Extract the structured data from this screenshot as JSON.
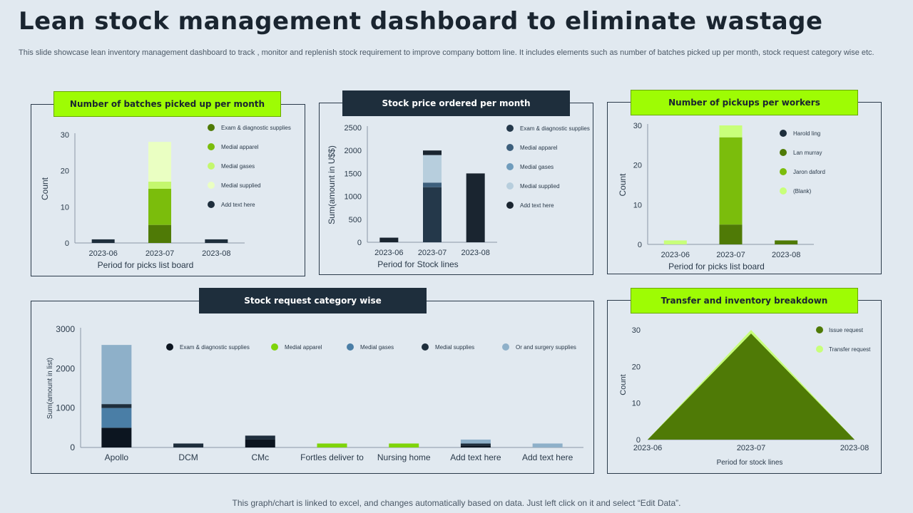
{
  "page": {
    "title": "Lean stock management dashboard to eliminate wastage",
    "subtitle": "This slide showcase lean inventory management dashboard to track , monitor and replenish stock requirement to improve company bottom line. It includes elements such as number of batches picked up per month, stock request category wise etc.",
    "footer": "This graph/chart is linked to excel, and changes automatically based on data. Just left click on it and select “Edit Data”."
  },
  "panels": {
    "batches": {
      "title": "Number of batches picked up per month"
    },
    "price": {
      "title": "Stock price ordered  per month"
    },
    "pickups": {
      "title": "Number of pickups per workers"
    },
    "requests": {
      "title": "Stock request category wise"
    },
    "transfer": {
      "title": "Transfer and inventory breakdown"
    }
  },
  "colors": {
    "background": "#e1e9f0",
    "accent_green": "#9efc04",
    "dark_navy": "#1e2e3c"
  },
  "chart_data": [
    {
      "id": "batches",
      "type": "bar",
      "stacked": true,
      "categories": [
        "2023-06",
        "2023-07",
        "2023-08"
      ],
      "xlabel": "Period for picks list board",
      "ylabel": "Count",
      "ylim": [
        0,
        30
      ],
      "yticks": [
        0,
        10,
        20,
        30
      ],
      "legend_position": "right",
      "series": [
        {
          "name": "Exam & diagnostic  supplies",
          "color": "#4f7a06",
          "values": [
            0,
            5,
            0
          ]
        },
        {
          "name": "Medial apparel",
          "color": "#7bbd0c",
          "values": [
            0,
            10,
            0
          ]
        },
        {
          "name": "Medial gases",
          "color": "#c4f76e",
          "values": [
            0,
            2,
            0
          ]
        },
        {
          "name": "Medial supplied",
          "color": "#eaffc2",
          "values": [
            0,
            11,
            0
          ]
        },
        {
          "name": "Add text here",
          "color": "#1e2e3c",
          "values": [
            1,
            0,
            1
          ]
        }
      ]
    },
    {
      "id": "price",
      "type": "bar",
      "stacked": true,
      "categories": [
        "2023-06",
        "2023-07",
        "2023-08"
      ],
      "xlabel": "Period for Stock lines",
      "ylabel": "Sum(amount in U$$)",
      "ylim": [
        0,
        2500
      ],
      "yticks": [
        0,
        500,
        1000,
        1500,
        2000,
        2500
      ],
      "legend_position": "right",
      "series": [
        {
          "name": "Exam & diagnostic  supplies",
          "color": "#24384a",
          "values": [
            0,
            1200,
            0
          ]
        },
        {
          "name": "Medial apparel",
          "color": "#3d5f7c",
          "values": [
            0,
            100,
            0
          ]
        },
        {
          "name": "Medial gases",
          "color": "#6f9cbc",
          "values": [
            0,
            0,
            0
          ]
        },
        {
          "name": "Medial supplied",
          "color": "#b7cedd",
          "values": [
            0,
            600,
            0
          ]
        },
        {
          "name": "Add text here",
          "color": "#1a2530",
          "values": [
            100,
            100,
            1500
          ]
        }
      ]
    },
    {
      "id": "pickups",
      "type": "bar",
      "stacked": true,
      "categories": [
        "2023-06",
        "2023-07",
        "2023-08"
      ],
      "xlabel": "Period for picks list board",
      "ylabel": "Count",
      "ylim": [
        0,
        30
      ],
      "yticks": [
        0,
        10,
        20,
        30
      ],
      "legend_position": "right",
      "series": [
        {
          "name": "Harold ling",
          "color": "#1e2e3c",
          "values": [
            0,
            0,
            0
          ]
        },
        {
          "name": "Lan murray",
          "color": "#4f7a06",
          "values": [
            0,
            5,
            1
          ]
        },
        {
          "name": "Jaron daford",
          "color": "#7bbd0c",
          "values": [
            0,
            22,
            0
          ]
        },
        {
          "name": "(Blank)",
          "color": "#c8ff7a",
          "values": [
            1,
            3,
            0
          ]
        }
      ]
    },
    {
      "id": "requests",
      "type": "bar",
      "stacked": true,
      "categories": [
        "Apollo",
        "DCM",
        "CMc",
        "Fortles deliver to",
        "Nursing home",
        "Add text here",
        "Add text here"
      ],
      "xlabel": "",
      "ylabel": "Sum(amount in list)",
      "ylim": [
        0,
        3000
      ],
      "yticks": [
        0,
        1000,
        2000,
        3000
      ],
      "legend_position": "top",
      "series": [
        {
          "name": "Exam & diagnostic  supplies",
          "color": "#0c1520",
          "values": [
            500,
            0,
            200,
            0,
            0,
            50,
            0
          ]
        },
        {
          "name": "Medial apparel",
          "color": "#7fd40a",
          "values": [
            0,
            0,
            0,
            100,
            100,
            0,
            0
          ]
        },
        {
          "name": "Medial gases",
          "color": "#4a7ea6",
          "values": [
            500,
            0,
            0,
            0,
            0,
            0,
            0
          ]
        },
        {
          "name": "Medial supplies",
          "color": "#1e2e3c",
          "values": [
            100,
            100,
            100,
            0,
            0,
            50,
            0
          ]
        },
        {
          "name": "Or and surgery supplies",
          "color": "#8eb0c9",
          "values": [
            1500,
            0,
            0,
            0,
            0,
            100,
            100
          ]
        }
      ]
    },
    {
      "id": "transfer",
      "type": "area",
      "x": [
        "2023-06",
        "2023-07",
        "2023-08"
      ],
      "xlabel": "Period  for stock lines",
      "ylabel": "Count",
      "ylim": [
        0,
        30
      ],
      "yticks": [
        0,
        10,
        20,
        30
      ],
      "legend_position": "right",
      "series": [
        {
          "name": "Issue request",
          "color": "#4f7a06",
          "values": [
            0,
            29,
            0
          ]
        },
        {
          "name": "Transfer request",
          "color": "#c8ff7a",
          "values": [
            0,
            30,
            0
          ]
        }
      ]
    }
  ]
}
